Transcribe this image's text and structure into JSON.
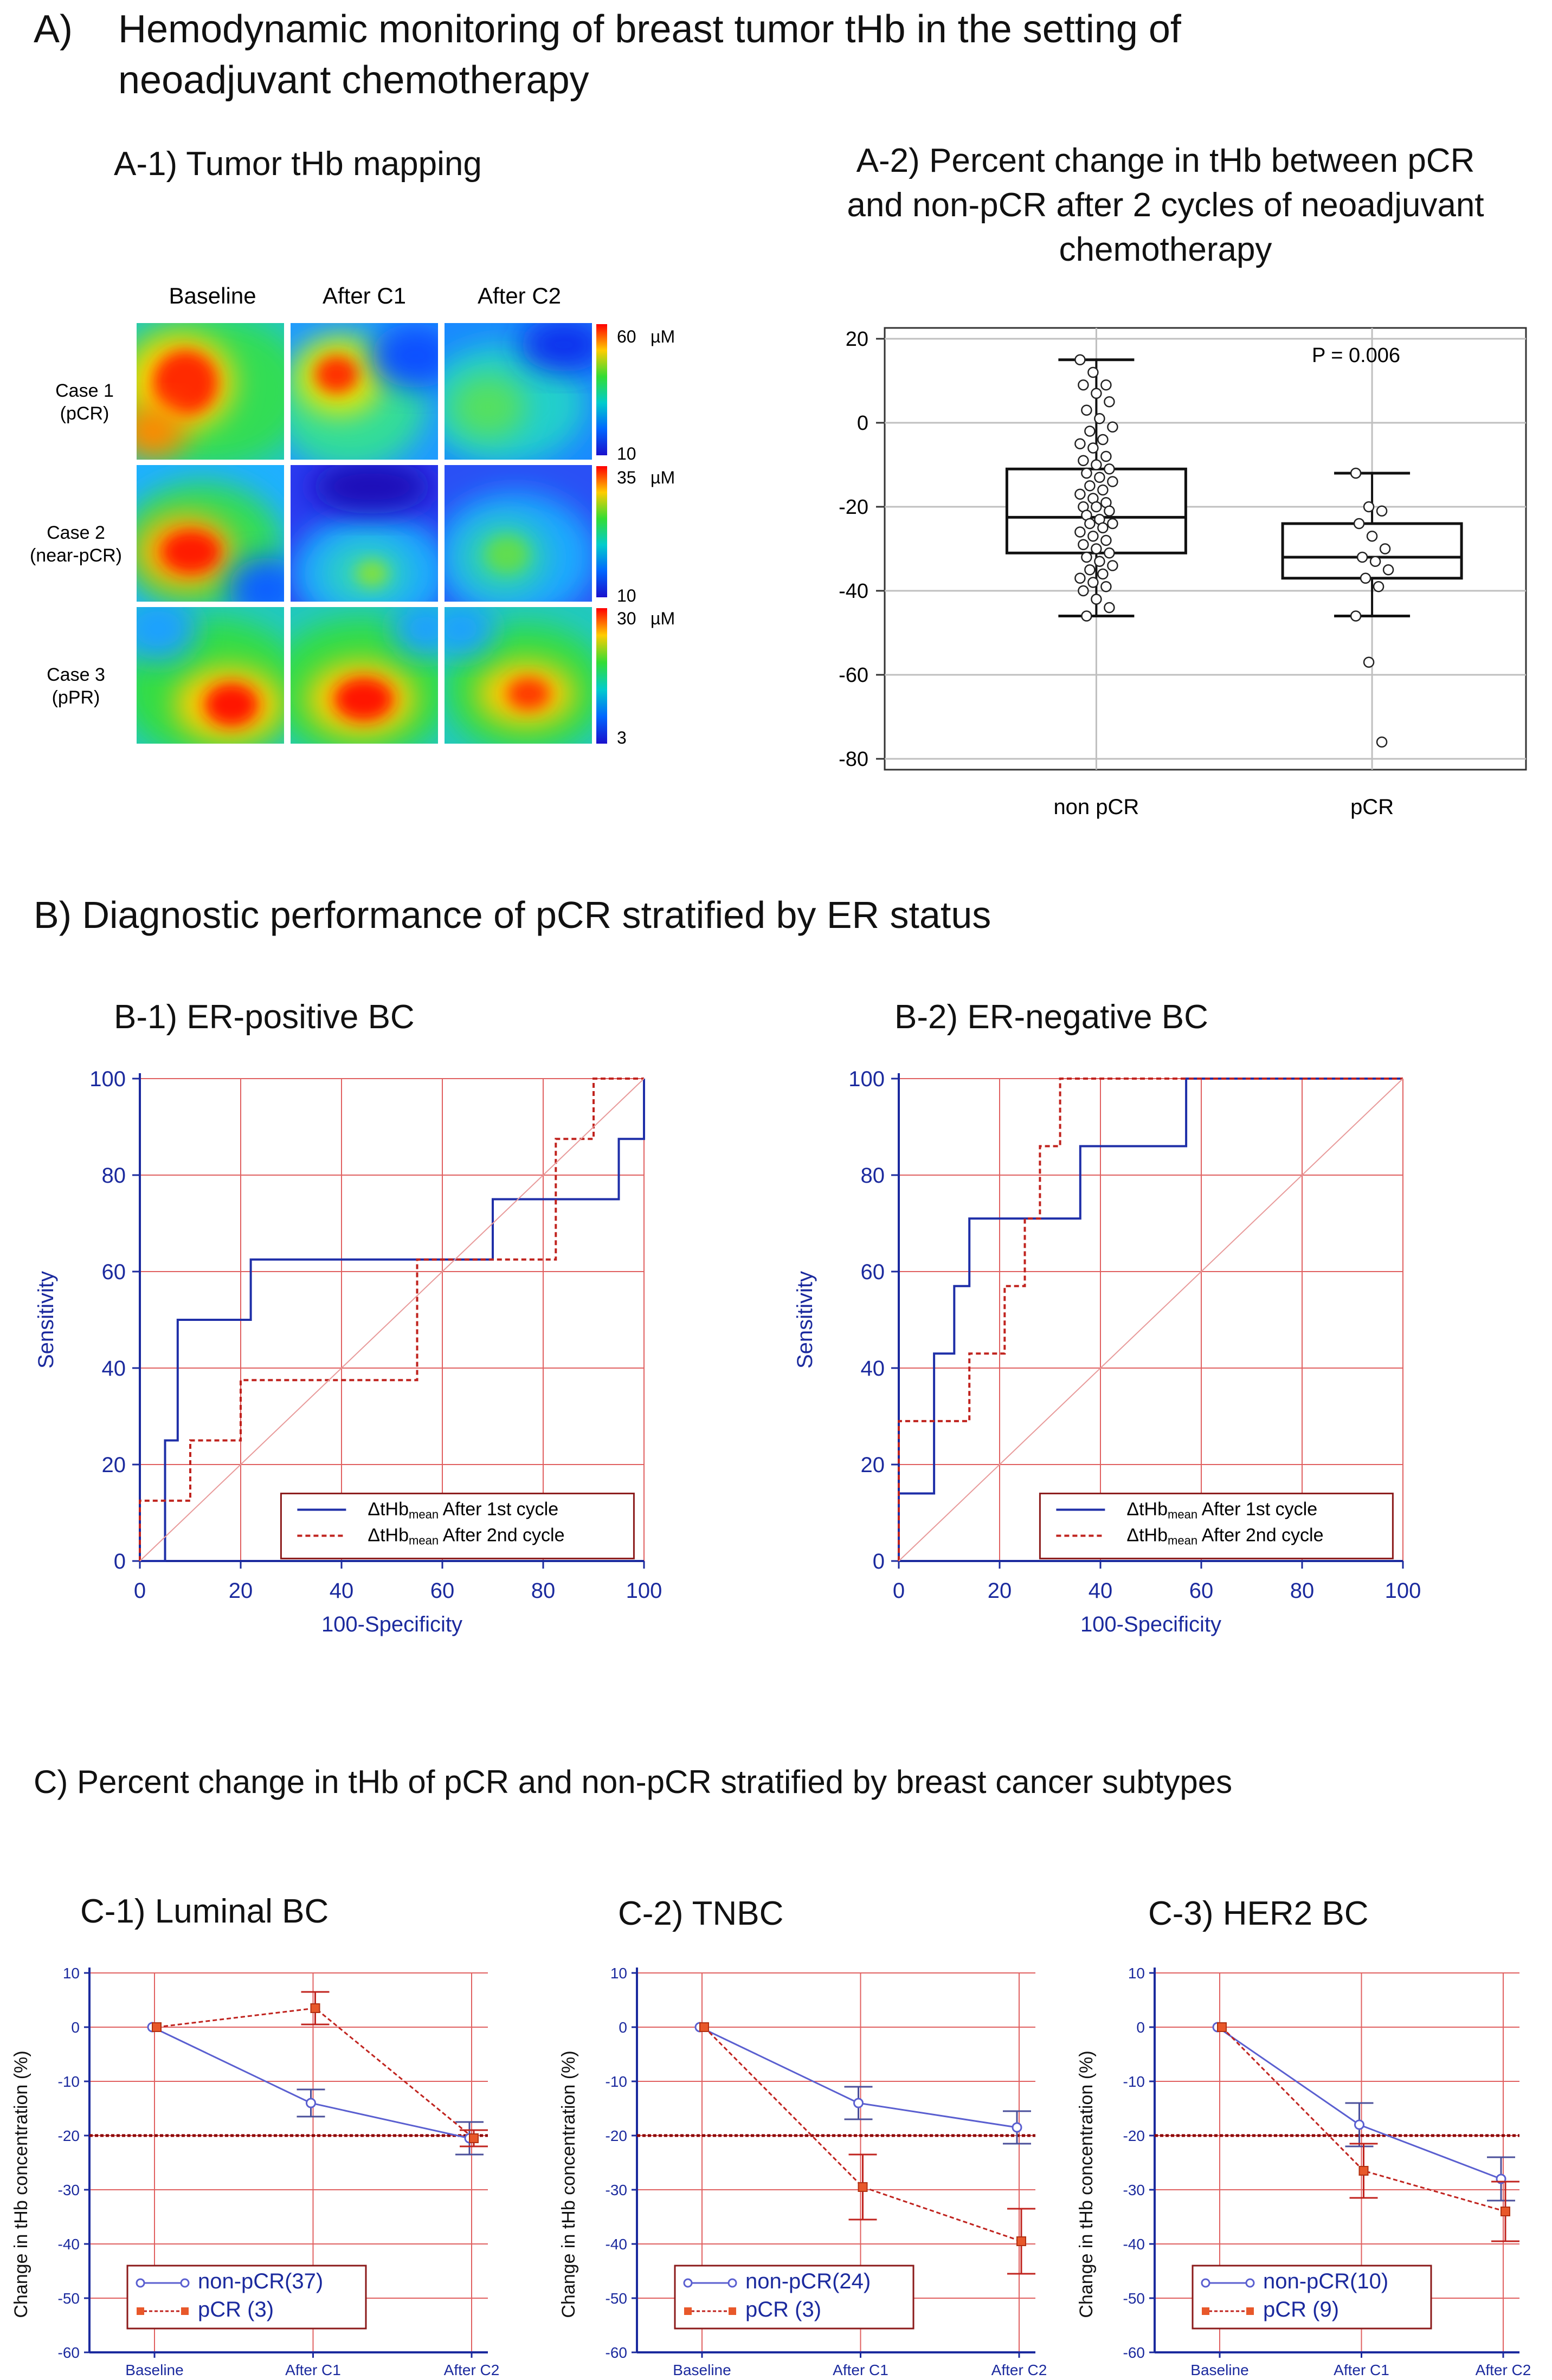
{
  "panelA": {
    "letter": "A)",
    "title_line1": "Hemodynamic monitoring of breast tumor tHb in the setting of",
    "title_line2": "neoadjuvant chemotherapy",
    "a1_title": "A-1) Tumor tHb mapping",
    "a2_title_line1": "A-2) Percent change in tHb between pCR",
    "a2_title_line2": "and non-pCR after 2 cycles of neoadjuvant",
    "a2_title_line3": "chemotherapy",
    "map": {
      "columns": [
        "Baseline",
        "After C1",
        "After C2"
      ],
      "rows": [
        {
          "label_line1": "Case 1",
          "label_line2": "(pCR)",
          "scale_max": "60",
          "scale_min": "10",
          "unit": "µM"
        },
        {
          "label_line1": "Case 2",
          "label_line2": "(near-pCR)",
          "scale_max": "35",
          "scale_min": "10",
          "unit": "µM"
        },
        {
          "label_line1": "Case 3",
          "label_line2": "(pPR)",
          "scale_max": "30",
          "scale_min": "3",
          "unit": "µM"
        }
      ]
    }
  },
  "panelB": {
    "title": "B) Diagnostic performance of pCR stratified by ER status",
    "b1_title": "B-1) ER-positive BC",
    "b2_title": "B-2) ER-negative BC",
    "legend_prefix": "ΔtHb",
    "legend_sub": "mean",
    "legend1_suffix": "After 1st cycle",
    "legend2_suffix": "After 2nd cycle"
  },
  "panelC": {
    "title": "C) Percent change in tHb of pCR and non-pCR stratified by breast cancer subtypes",
    "c1_title": "C-1) Luminal BC",
    "c2_title": "C-2) TNBC",
    "c3_title": "C-3) HER2 BC"
  },
  "colors": {
    "roc_cycle1": "#1f2fa8",
    "roc_cycle2": "#c0231e",
    "grid_red": "#e06060",
    "axis_blue": "#1b2a9e",
    "nonpcr_line": "#5a5fd0",
    "pcr_marker": "#e8582a"
  },
  "chart_data": [
    {
      "id": "A-2",
      "type": "box",
      "title": "",
      "categories": [
        "non pCR",
        "pCR"
      ],
      "ylim": [
        -80,
        20
      ],
      "yticks": [
        20,
        0,
        -20,
        -40,
        -60,
        -80
      ],
      "grid": true,
      "annotation": "P = 0.006",
      "boxes": [
        {
          "name": "non pCR",
          "whisker_low": -46,
          "q1": -31,
          "median": -22.5,
          "q3": -11,
          "whisker_high": 15
        },
        {
          "name": "pCR",
          "whisker_low": -46,
          "q1": -37,
          "median": -32,
          "q3": -24,
          "whisker_high": -12
        }
      ],
      "points": {
        "non pCR": [
          15,
          12,
          9,
          9,
          7,
          5,
          3,
          1,
          -1,
          -2,
          -4,
          -5,
          -6,
          -8,
          -9,
          -10,
          -11,
          -12,
          -13,
          -14,
          -15,
          -16,
          -17,
          -18,
          -19,
          -20,
          -20,
          -21,
          -22,
          -23,
          -24,
          -24,
          -25,
          -26,
          -27,
          -28,
          -29,
          -30,
          -31,
          -32,
          -33,
          -34,
          -35,
          -36,
          -37,
          -38,
          -39,
          -40,
          -42,
          -44,
          -46
        ],
        "pCR": [
          -12,
          -20,
          -21,
          -24,
          -27,
          -30,
          -32,
          -33,
          -35,
          -37,
          -39,
          -46,
          -57,
          -76
        ]
      }
    },
    {
      "id": "B-1",
      "type": "line",
      "title": "",
      "xlabel": "100-Specificity",
      "ylabel": "Sensitivity",
      "xlim": [
        0,
        100
      ],
      "ylim": [
        0,
        100
      ],
      "ticks": [
        0,
        20,
        40,
        60,
        80,
        100
      ],
      "grid": true,
      "legend_position": "bottom-right",
      "series": [
        {
          "name": "ΔtHbmean After 1st cycle",
          "x": [
            0,
            5,
            5,
            7.5,
            7.5,
            22,
            22,
            70,
            70,
            95,
            95,
            100,
            100
          ],
          "y": [
            0,
            0,
            25,
            25,
            50,
            50,
            62.5,
            62.5,
            75,
            75,
            87.5,
            87.5,
            100
          ]
        },
        {
          "name": "ΔtHbmean After 2nd cycle",
          "x": [
            0,
            0,
            10,
            10,
            20,
            20,
            55,
            55,
            82.5,
            82.5,
            90,
            90,
            100
          ],
          "y": [
            0,
            12.5,
            12.5,
            25,
            25,
            37.5,
            37.5,
            62.5,
            62.5,
            87.5,
            87.5,
            100,
            100
          ]
        },
        {
          "name": "",
          "x": [
            0,
            100
          ],
          "y": [
            0,
            100
          ]
        }
      ]
    },
    {
      "id": "B-2",
      "type": "line",
      "title": "",
      "xlabel": "100-Specificity",
      "ylabel": "Sensitivity",
      "xlim": [
        0,
        100
      ],
      "ylim": [
        0,
        100
      ],
      "ticks": [
        0,
        20,
        40,
        60,
        80,
        100
      ],
      "grid": true,
      "legend_position": "bottom-right",
      "series": [
        {
          "name": "ΔtHbmean After 1st cycle",
          "x": [
            0,
            0,
            7,
            7,
            11,
            11,
            14,
            14,
            36,
            36,
            57,
            57,
            100
          ],
          "y": [
            0,
            14,
            14,
            43,
            43,
            57,
            57,
            71,
            71,
            86,
            86,
            100,
            100
          ]
        },
        {
          "name": "ΔtHbmean After 2nd cycle",
          "x": [
            0,
            0,
            14,
            14,
            21,
            21,
            25,
            25,
            28,
            28,
            32,
            32,
            100
          ],
          "y": [
            0,
            29,
            29,
            43,
            43,
            57,
            57,
            71,
            71,
            86,
            86,
            100,
            100
          ]
        },
        {
          "name": "",
          "x": [
            0,
            100
          ],
          "y": [
            0,
            100
          ]
        }
      ]
    },
    {
      "id": "C-1",
      "type": "line",
      "title": "",
      "categories": [
        "Baseline",
        "After C1",
        "After C2"
      ],
      "ylabel": "Change in tHb concentration (%)",
      "ylim": [
        -60,
        10
      ],
      "yticks": [
        10,
        0,
        -10,
        -20,
        -30,
        -40,
        -50,
        -60
      ],
      "reference_line": -20,
      "legend_position": "bottom-left",
      "series": [
        {
          "name": "non-pCR(37)",
          "values": [
            0,
            -14,
            -20.5
          ],
          "err": [
            0,
            2.5,
            3
          ]
        },
        {
          "name": "pCR (3)",
          "values": [
            0,
            3.5,
            -20.5
          ],
          "err": [
            0,
            3,
            1.5
          ]
        }
      ]
    },
    {
      "id": "C-2",
      "type": "line",
      "title": "",
      "categories": [
        "Baseline",
        "After C1",
        "After C2"
      ],
      "ylabel": "Change in tHb concentration (%)",
      "ylim": [
        -60,
        10
      ],
      "yticks": [
        10,
        0,
        -10,
        -20,
        -30,
        -40,
        -50,
        -60
      ],
      "reference_line": -20,
      "legend_position": "bottom-left",
      "series": [
        {
          "name": "non-pCR(24)",
          "values": [
            0,
            -14,
            -18.5
          ],
          "err": [
            0,
            3,
            3
          ]
        },
        {
          "name": "pCR (3)",
          "values": [
            0,
            -29.5,
            -39.5
          ],
          "err": [
            0,
            6,
            6
          ]
        }
      ]
    },
    {
      "id": "C-3",
      "type": "line",
      "title": "",
      "categories": [
        "Baseline",
        "After C1",
        "After C2"
      ],
      "ylabel": "Change in tHb concentration (%)",
      "ylim": [
        -60,
        10
      ],
      "yticks": [
        10,
        0,
        -10,
        -20,
        -30,
        -40,
        -50,
        -60
      ],
      "reference_line": -20,
      "legend_position": "bottom-left",
      "series": [
        {
          "name": "non-pCR(10)",
          "values": [
            0,
            -18,
            -28
          ],
          "err": [
            0,
            4,
            4
          ]
        },
        {
          "name": "pCR (9)",
          "values": [
            0,
            -26.5,
            -34
          ],
          "err": [
            0,
            5,
            5.5
          ]
        }
      ]
    }
  ]
}
